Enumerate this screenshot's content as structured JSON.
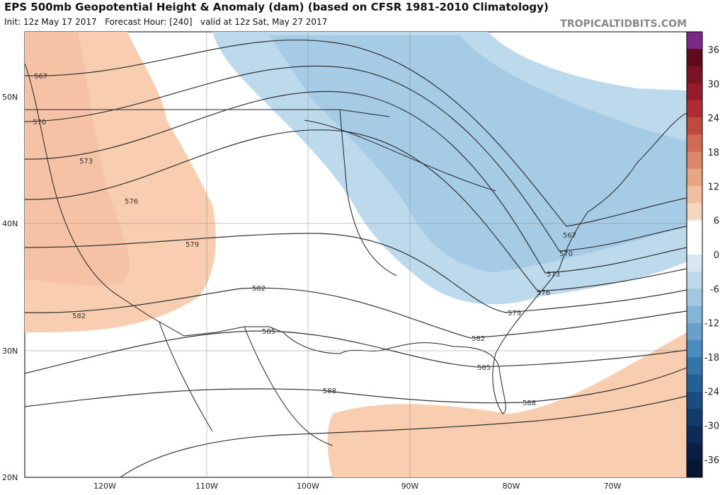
{
  "header": {
    "title": "EPS 500mb Geopotential Height & Anomaly (dam) (based on CFSR 1981-2010 Climatology)",
    "subtitle": "Init: 12z May 17 2017   Forecast Hour: [240]   valid at 12z Sat, May 27 2017",
    "site": "TROPICALTIDBITS.COM"
  },
  "lat_labels": [
    "50N",
    "40N",
    "30N",
    "20N"
  ],
  "lon_labels": [
    "120W",
    "110W",
    "100W",
    "90W",
    "80W",
    "70W"
  ],
  "contour_labels": [
    "567",
    "570",
    "573",
    "576",
    "579",
    "582",
    "582",
    "585",
    "588",
    "567",
    "570",
    "573",
    "576",
    "579",
    "582",
    "585",
    "588"
  ],
  "colorbar_labels": [
    "36",
    "30",
    "24",
    "18",
    "12",
    "6",
    "0",
    "-6",
    "-12",
    "-18",
    "-24",
    "-30",
    "-36"
  ]
}
